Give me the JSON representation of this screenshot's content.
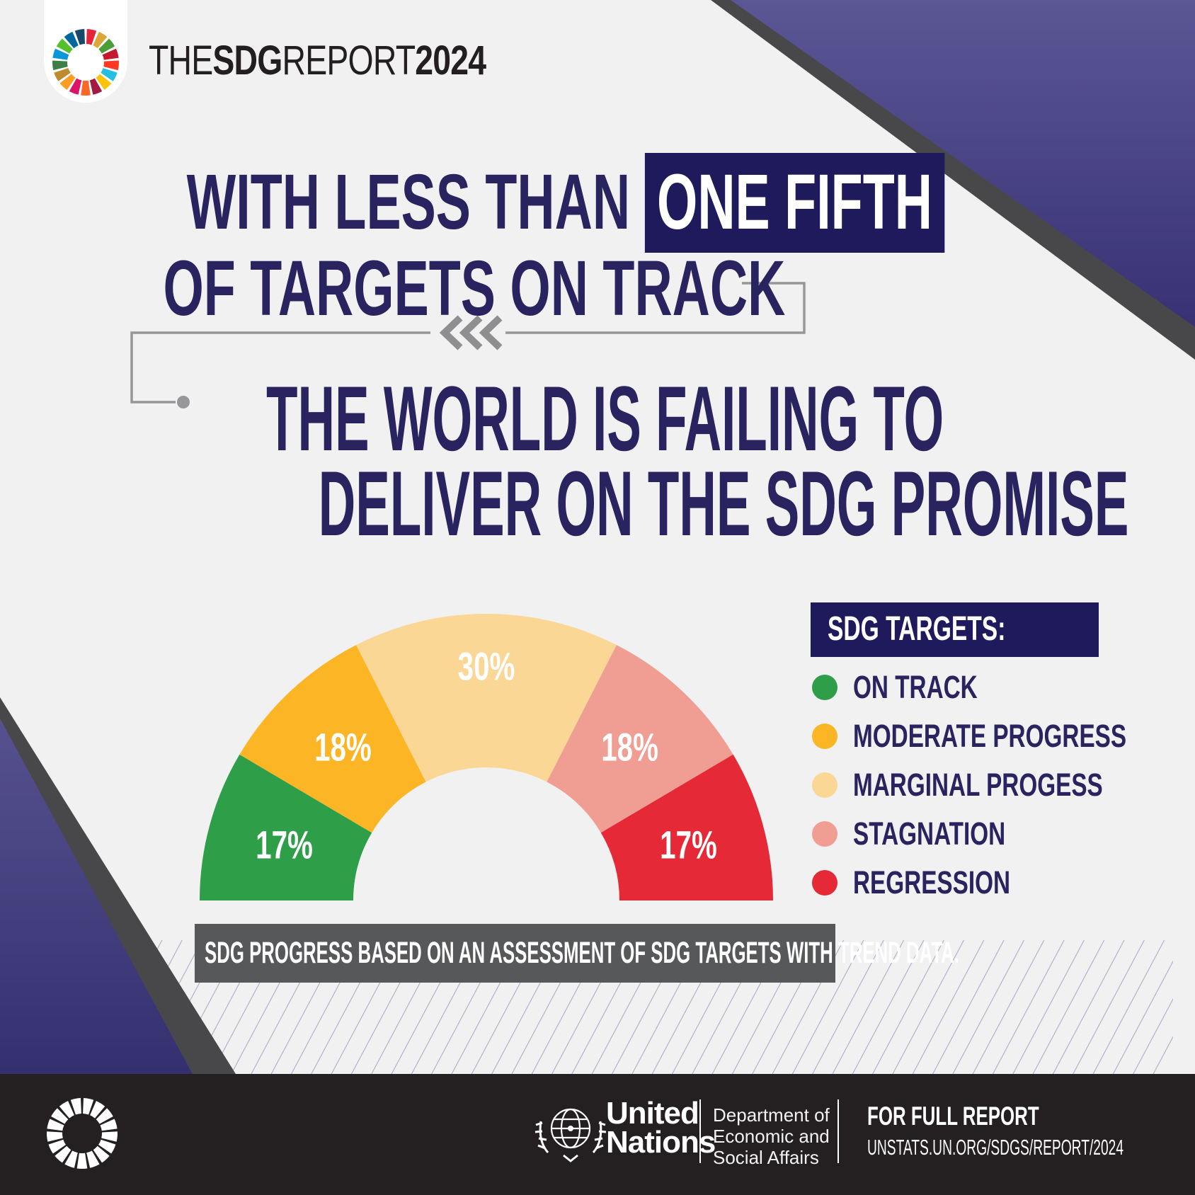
{
  "header": {
    "title_parts": {
      "p1": "THE",
      "p2": "SDG",
      "p3": "REPORT",
      "p4": "2024"
    }
  },
  "headline": {
    "prefix": "WITH LESS THAN",
    "highlight": "ONE FIFTH",
    "line2": "OF TARGETS ON TRACK"
  },
  "subheadline": {
    "line1": "THE WORLD IS FAILING TO",
    "line2": "DELIVER ON THE SDG PROMISE"
  },
  "chart_data": {
    "type": "pie",
    "variant": "semicircle-donut-gauge",
    "categories": [
      "ON TRACK",
      "MODERATE PROGRESS",
      "MARGINAL PROGESS",
      "STAGNATION",
      "REGRESSION"
    ],
    "values": [
      17,
      18,
      30,
      18,
      17
    ],
    "unit": "%",
    "slice_labels": [
      "17%",
      "18%",
      "30%",
      "18%",
      "17%"
    ],
    "colors": [
      "#2f9e48",
      "#fcb525",
      "#fad795",
      "#f09e93",
      "#e52937"
    ],
    "total": 100,
    "legend_position": "right",
    "note": "SDG PROGRESS BASED ON AN ASSESSMENT OF SDG TARGETS WITH TREND DATA."
  },
  "legend": {
    "title": "SDG TARGETS:",
    "items": [
      {
        "label": "ON TRACK",
        "color": "#2f9e48"
      },
      {
        "label": "MODERATE PROGRESS",
        "color": "#fcb525"
      },
      {
        "label": "MARGINAL PROGESS",
        "color": "#fad795"
      },
      {
        "label": "STAGNATION",
        "color": "#f09e93"
      },
      {
        "label": "REGRESSION",
        "color": "#e52937"
      }
    ]
  },
  "caption": {
    "text": "SDG PROGRESS BASED ON AN ASSESSMENT OF SDG TARGETS WITH TREND DATA."
  },
  "footer": {
    "un_name_line1": "United",
    "un_name_line2": "Nations",
    "dept_line1": "Department of",
    "dept_line2": "Economic and",
    "dept_line3": "Social Affairs",
    "report_label": "FOR FULL REPORT",
    "report_url": "UNSTATS.UN.ORG/SDGS/REPORT/2024"
  },
  "colors": {
    "background": "#f2f1f2",
    "navy_text": "#29245f",
    "navy_box": "#1e1a5c",
    "connector_gray": "#97979a",
    "caption_bar": "#57585a",
    "footer_bar": "#241f20",
    "corner_purple_top": "#5b5694",
    "corner_purple_bottom": "#383274",
    "corner_gray_stripe": "#48484a",
    "hatch_line": "#b0abc9",
    "percent_label": "#ffffff"
  },
  "sdg_wheel_colors": [
    "#e5243b",
    "#dda63a",
    "#4c9f38",
    "#c5192d",
    "#ff3a21",
    "#26bde2",
    "#fcc30b",
    "#a21942",
    "#fd6925",
    "#dd1367",
    "#fd9d24",
    "#bf8b2e",
    "#3f7e44",
    "#0a97d9",
    "#56c02b",
    "#00689d",
    "#19486a"
  ]
}
